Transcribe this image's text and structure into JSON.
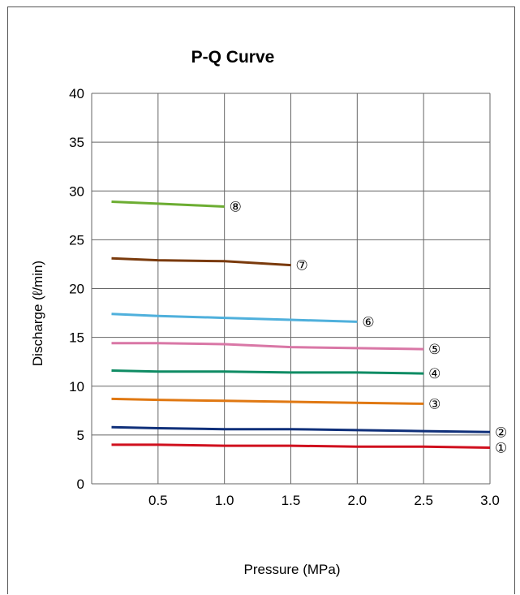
{
  "chart_data": {
    "type": "line",
    "title": "P-Q Curve",
    "xlabel": "Pressure (MPa)",
    "ylabel": "Discharge (ℓ/min)",
    "xlim": [
      0,
      3.0
    ],
    "ylim": [
      0,
      40
    ],
    "x_ticks": [
      "0.5",
      "1.0",
      "1.5",
      "2.0",
      "2.5",
      "3.0"
    ],
    "x_tick_values": [
      0.5,
      1.0,
      1.5,
      2.0,
      2.5,
      3.0
    ],
    "y_ticks": [
      "0",
      "5",
      "10",
      "15",
      "20",
      "25",
      "30",
      "35",
      "40"
    ],
    "y_tick_values": [
      0,
      5,
      10,
      15,
      20,
      25,
      30,
      35,
      40
    ],
    "grid": true,
    "series": [
      {
        "label": "①",
        "color": "#d0101e",
        "x": [
          0.15,
          0.5,
          1.0,
          1.5,
          2.0,
          2.5,
          3.0
        ],
        "y": [
          4.0,
          4.0,
          3.9,
          3.9,
          3.8,
          3.8,
          3.7
        ]
      },
      {
        "label": "②",
        "color": "#10307a",
        "x": [
          0.15,
          0.5,
          1.0,
          1.5,
          2.0,
          2.5,
          3.0
        ],
        "y": [
          5.8,
          5.7,
          5.6,
          5.6,
          5.5,
          5.4,
          5.3
        ]
      },
      {
        "label": "③",
        "color": "#e07812",
        "x": [
          0.15,
          0.5,
          1.0,
          1.5,
          2.0,
          2.5
        ],
        "y": [
          8.7,
          8.6,
          8.5,
          8.4,
          8.3,
          8.2
        ]
      },
      {
        "label": "④",
        "color": "#0f8c64",
        "x": [
          0.15,
          0.5,
          1.0,
          1.5,
          2.0,
          2.5
        ],
        "y": [
          11.6,
          11.5,
          11.5,
          11.4,
          11.4,
          11.3
        ]
      },
      {
        "label": "⑤",
        "color": "#d977a6",
        "x": [
          0.15,
          0.5,
          1.0,
          1.5,
          2.0,
          2.5
        ],
        "y": [
          14.4,
          14.4,
          14.3,
          14.0,
          13.9,
          13.8
        ]
      },
      {
        "label": "⑥",
        "color": "#4fb0dc",
        "x": [
          0.15,
          0.5,
          1.0,
          1.5,
          2.0
        ],
        "y": [
          17.4,
          17.2,
          17.0,
          16.8,
          16.6
        ]
      },
      {
        "label": "⑦",
        "color": "#7a3a0c",
        "x": [
          0.15,
          0.5,
          1.0,
          1.5
        ],
        "y": [
          23.1,
          22.9,
          22.8,
          22.4
        ]
      },
      {
        "label": "⑧",
        "color": "#6cad32",
        "x": [
          0.15,
          0.5,
          1.0
        ],
        "y": [
          28.9,
          28.7,
          28.4
        ]
      }
    ]
  }
}
